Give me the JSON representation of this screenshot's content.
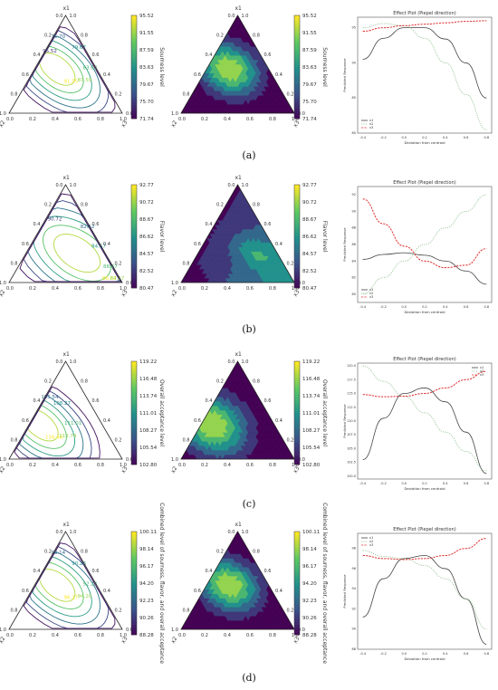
{
  "figure": {
    "panels": [
      {
        "panel_label": "(a)",
        "contour_colorbar": {
          "label": "Sourness level",
          "ticks": [
            "95.52",
            "91.55",
            "87.59",
            "83.63",
            "79.67",
            "75.70",
            "71.74"
          ]
        },
        "filled_colorbar": {
          "label": "Sourness level",
          "ticks": [
            "95.52",
            "91.55",
            "87.59",
            "83.63",
            "79.67",
            "75.70",
            "71.74"
          ]
        },
        "contour_labels": [
          "91.55",
          "87.59",
          "83.63",
          "79.67",
          "75.70",
          "95.52"
        ],
        "peak": [
          0.45,
          0.35
        ],
        "spread": 0.3,
        "colormap_mode": "center"
      },
      {
        "panel_label": "(b)",
        "contour_colorbar": {
          "label": "Flavor level",
          "ticks": [
            "92.77",
            "90.72",
            "88.67",
            "86.62",
            "84.57",
            "82.52",
            "80.47"
          ]
        },
        "filled_colorbar": {
          "label": "Flavor level",
          "ticks": [
            "92.77",
            "90.72",
            "88.67",
            "86.62",
            "84.57",
            "82.52",
            "80.47"
          ]
        },
        "contour_labels": [
          "86.62",
          "84.57",
          "88.67",
          "84.57",
          "82.52",
          "90.72"
        ],
        "peak": [
          0.15,
          0.15
        ],
        "spread": 0.45,
        "colormap_mode": "b"
      },
      {
        "panel_label": "(c)",
        "contour_colorbar": {
          "label": "Overall acceptance level",
          "ticks": [
            "119.22",
            "116.48",
            "113.74",
            "111.01",
            "108.27",
            "105.54",
            "102.80"
          ]
        },
        "filled_colorbar": {
          "label": "Overall acceptance level",
          "ticks": [
            "119.22",
            "116.48",
            "113.74",
            "111.01",
            "108.27",
            "105.54",
            "102.80"
          ]
        },
        "contour_labels": [
          "116.48",
          "113.74",
          "111.01",
          "108.27",
          "105.54"
        ],
        "peak": [
          0.35,
          0.55
        ],
        "spread": 0.35,
        "colormap_mode": "left"
      },
      {
        "panel_label": "(d)",
        "contour_colorbar": {
          "label": "Combined level of sourness, flavor, and overall acceptance",
          "ticks": [
            "100.11",
            "98.14",
            "96.17",
            "94.20",
            "92.23",
            "90.26",
            "88.28"
          ]
        },
        "filled_colorbar": {
          "label": "Combined level of sourness, flavor, and overall acceptance",
          "ticks": [
            "100.11",
            "98.14",
            "96.17",
            "94.20",
            "92.23",
            "90.26",
            "88.28"
          ]
        },
        "contour_labels": [
          "96.17",
          "94.20",
          "92.23",
          "90.26",
          "98.14"
        ],
        "peak": [
          0.45,
          0.35
        ],
        "spread": 0.3,
        "colormap_mode": "center"
      }
    ],
    "ternary_axes": {
      "top_label": "x1",
      "left_label": "x2",
      "right_label": "x3",
      "ticks": [
        "0.0",
        "0.2",
        "0.4",
        "0.6",
        "0.8",
        "1.0"
      ]
    },
    "colors": {
      "cmap_low": "#440154",
      "cmap_1": "#3b528b",
      "cmap_2": "#21918c",
      "cmap_3": "#5ec962",
      "cmap_high": "#fde725",
      "line_x1": "#444444",
      "line_x2": "#90c090",
      "line_x3": "#e03030"
    }
  },
  "chart_data": [
    {
      "type": "line",
      "title": "Effect Plot (Piepel direction)",
      "xlabel": "Deviation from centroid",
      "ylabel": "Predicted Response",
      "xlim": [
        -0.45,
        0.85
      ],
      "x_ticks": [
        "-0.4",
        "-0.2",
        "0.0",
        "0.2",
        "0.4",
        "0.6",
        "0.8"
      ],
      "ylim": [
        80,
        96.5
      ],
      "y_ticks": [
        "80",
        "85",
        "90",
        "95"
      ],
      "x": [
        -0.4,
        -0.2,
        0.0,
        0.2,
        0.4,
        0.6,
        0.8
      ],
      "series": [
        {
          "name": "x1",
          "style": "solid",
          "values": [
            90.5,
            93.5,
            95.0,
            95.0,
            93.4,
            90.0,
            85.0
          ]
        },
        {
          "name": "x2",
          "style": "dotted",
          "values": [
            95.0,
            95.6,
            95.3,
            93.5,
            90.0,
            85.5,
            80.5
          ]
        },
        {
          "name": "x3",
          "style": "dashed",
          "values": [
            94.5,
            95.0,
            95.3,
            95.5,
            95.7,
            95.9,
            96.0
          ]
        }
      ],
      "legend": "lower-left"
    },
    {
      "type": "line",
      "title": "Effect Plot (Piepel direction)",
      "xlabel": "Deviation from centroid",
      "ylabel": "Predicted Response",
      "xlim": [
        -0.45,
        0.85
      ],
      "x_ticks": [
        "-0.4",
        "-0.2",
        "0.0",
        "0.2",
        "0.4",
        "0.6",
        "0.8"
      ],
      "ylim": [
        79,
        93
      ],
      "y_ticks": [
        "80",
        "82",
        "84",
        "86",
        "88",
        "90",
        "92"
      ],
      "x": [
        -0.4,
        -0.2,
        0.0,
        0.2,
        0.4,
        0.6,
        0.8
      ],
      "series": [
        {
          "name": "x1",
          "style": "solid",
          "values": [
            84.2,
            84.8,
            85.0,
            84.7,
            84.0,
            82.8,
            81.2
          ]
        },
        {
          "name": "x2",
          "style": "dotted",
          "values": [
            80.0,
            82.0,
            84.0,
            86.0,
            88.0,
            90.0,
            92.0
          ]
        },
        {
          "name": "x3",
          "style": "dashed",
          "values": [
            91.5,
            88.5,
            85.8,
            84.0,
            83.2,
            83.5,
            85.5
          ]
        }
      ],
      "legend": "lower-left"
    },
    {
      "type": "line",
      "title": "Effect Plot (Piepel direction)",
      "xlabel": "Deviation from centroid",
      "ylabel": "Predicted Response",
      "xlim": [
        -0.45,
        0.85
      ],
      "x_ticks": [
        "-0.4",
        "-0.2",
        "0.0",
        "0.2",
        "0.4",
        "0.6",
        "0.8"
      ],
      "ylim": [
        99.5,
        120.5
      ],
      "y_ticks": [
        "100.0",
        "102.5",
        "105.0",
        "107.5",
        "110.0",
        "112.5",
        "115.0",
        "117.5",
        "120.0"
      ],
      "x": [
        -0.4,
        -0.2,
        0.0,
        0.2,
        0.4,
        0.6,
        0.8
      ],
      "series": [
        {
          "name": "x1",
          "style": "solid",
          "values": [
            103.0,
            110.5,
            115.0,
            116.0,
            113.5,
            108.0,
            100.5
          ]
        },
        {
          "name": "x2",
          "style": "dotted",
          "values": [
            120.0,
            117.2,
            114.5,
            111.5,
            108.0,
            104.5,
            101.0
          ]
        },
        {
          "name": "x3",
          "style": "dashed",
          "values": [
            114.8,
            114.4,
            114.5,
            115.0,
            116.0,
            117.5,
            119.0
          ]
        }
      ],
      "legend": "top-right"
    },
    {
      "type": "line",
      "title": "Effect Plot (Piepel direction)",
      "xlabel": "Deviation from centroid",
      "ylabel": "Predicted Response",
      "xlim": [
        -0.45,
        0.85
      ],
      "x_ticks": [
        "-0.4",
        "-0.2",
        "0.0",
        "0.2",
        "0.4",
        "0.6",
        "0.8"
      ],
      "ylim": [
        88,
        99.5
      ],
      "y_ticks": [
        "88",
        "90",
        "92",
        "94",
        "96",
        "98"
      ],
      "x": [
        -0.4,
        -0.2,
        0.0,
        0.2,
        0.4,
        0.6,
        0.8
      ],
      "series": [
        {
          "name": "x1",
          "style": "solid",
          "values": [
            91.2,
            95.0,
            97.0,
            97.3,
            96.0,
            93.0,
            88.5
          ]
        },
        {
          "name": "x2",
          "style": "dotted",
          "values": [
            97.8,
            97.2,
            97.0,
            96.3,
            95.0,
            93.0,
            90.0
          ]
        },
        {
          "name": "x3",
          "style": "dashed",
          "values": [
            97.3,
            97.0,
            96.9,
            97.0,
            97.3,
            98.0,
            99.0
          ]
        }
      ],
      "legend": "top-left"
    }
  ]
}
